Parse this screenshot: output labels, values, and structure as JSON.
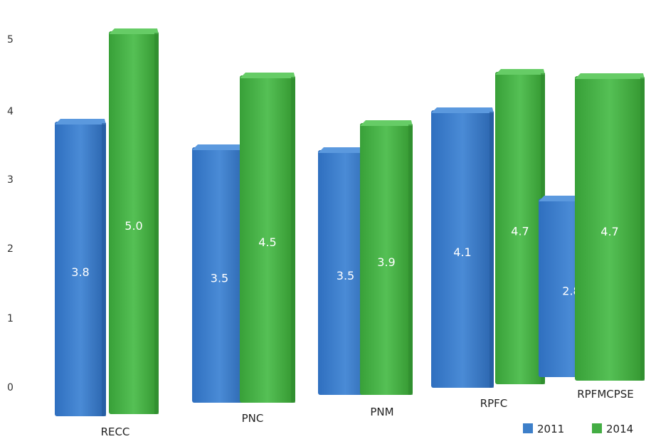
{
  "chart_data": {
    "type": "bar",
    "categories": [
      "RECC",
      "PNC",
      "PNM",
      "RPFC",
      "RPFMCPSE"
    ],
    "series": [
      {
        "name": "2011",
        "values": [
          3.8,
          3.5,
          3.5,
          4.1,
          2.8
        ],
        "labels": [
          "3.8",
          "3.5",
          "3.5",
          "4.1",
          "2.8"
        ],
        "color": "#3d7fc9"
      },
      {
        "name": "2014",
        "values": [
          5.0,
          4.5,
          3.9,
          4.7,
          4.7
        ],
        "labels": [
          "5.0",
          "4.5",
          "3.9",
          "4.7",
          "4.7"
        ],
        "color": "#43ad43"
      }
    ],
    "y_ticks": [
      "0",
      "1",
      "2",
      "3",
      "4",
      "5"
    ],
    "ylim": [
      0,
      5.2
    ],
    "grid": false,
    "legend_position": "bottom-right",
    "style": "3d-perspective"
  }
}
